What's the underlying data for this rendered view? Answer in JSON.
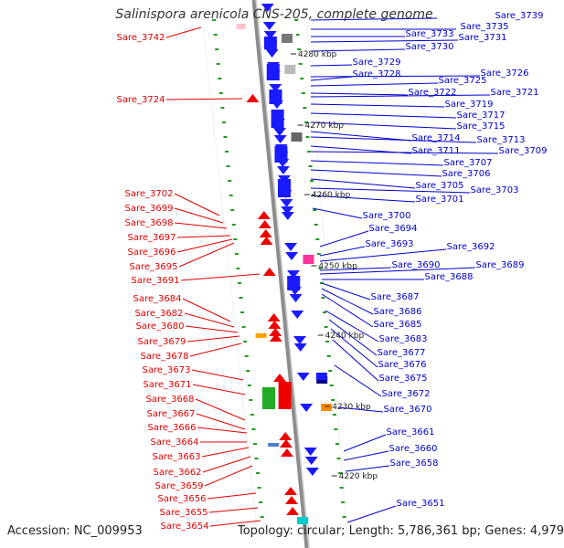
{
  "title": "Salinispora arenicola CNS-205, complete genome",
  "footer": {
    "accession": "Accession: NC_009953",
    "summary": "Topology: circular; Length: 5,786,361 bp; Genes: 4,979"
  },
  "colors": {
    "forward_label": "#dd0000",
    "reverse_label": "#0000cc",
    "backbone": "#8c8c8c",
    "tick": "#229922"
  },
  "scale_marks": [
    "4280 kbp",
    "4270 kbp",
    "4260 kbp",
    "4250 kbp",
    "4240 kbp",
    "4230 kbp",
    "4220 kbp"
  ],
  "forward_genes": [
    "Sare_3742",
    "Sare_3724",
    "Sare_3702",
    "Sare_3699",
    "Sare_3698",
    "Sare_3697",
    "Sare_3696",
    "Sare_3695",
    "Sare_3691",
    "Sare_3684",
    "Sare_3682",
    "Sare_3680",
    "Sare_3679",
    "Sare_3678",
    "Sare_3673",
    "Sare_3671",
    "Sare_3668",
    "Sare_3667",
    "Sare_3666",
    "Sare_3664",
    "Sare_3663",
    "Sare_3662",
    "Sare_3659",
    "Sare_3656",
    "Sare_3655",
    "Sare_3654"
  ],
  "reverse_genes": [
    "Sare_3739",
    "Sare_3735",
    "Sare_3733",
    "Sare_3731",
    "Sare_3730",
    "Sare_3729",
    "Sare_3726",
    "Sare_3728",
    "Sare_3725",
    "Sare_3722",
    "Sare_3721",
    "Sare_3719",
    "Sare_3717",
    "Sare_3715",
    "Sare_3714",
    "Sare_3713",
    "Sare_3711",
    "Sare_3709",
    "Sare_3707",
    "Sare_3706",
    "Sare_3705",
    "Sare_3703",
    "Sare_3701",
    "Sare_3700",
    "Sare_3694",
    "Sare_3693",
    "Sare_3692",
    "Sare_3690",
    "Sare_3689",
    "Sare_3688",
    "Sare_3687",
    "Sare_3686",
    "Sare_3685",
    "Sare_3683",
    "Sare_3677",
    "Sare_3676",
    "Sare_3675",
    "Sare_3672",
    "Sare_3670",
    "Sare_3661",
    "Sare_3660",
    "Sare_3658",
    "Sare_3651"
  ]
}
